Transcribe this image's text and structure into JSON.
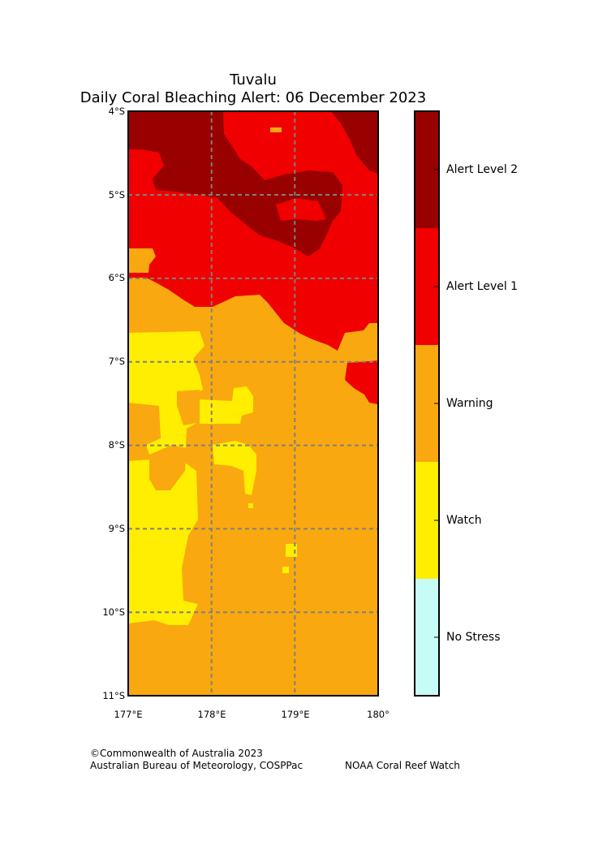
{
  "title": "Tuvalu",
  "subtitle": "Daily Coral Bleaching Alert: 06 December 2023",
  "axes": {
    "lat_labels": [
      "4°S",
      "5°S",
      "6°S",
      "7°S",
      "8°S",
      "9°S",
      "10°S",
      "11°S"
    ],
    "lon_labels": [
      "177°E",
      "178°E",
      "179°E",
      "180°"
    ]
  },
  "legend": {
    "levels": [
      {
        "label": "Alert Level 2",
        "color": "#990000"
      },
      {
        "label": "Alert Level 1",
        "color": "#f00000"
      },
      {
        "label": "Warning",
        "color": "#f9a90f"
      },
      {
        "label": "Watch",
        "color": "#ffee00"
      },
      {
        "label": "No Stress",
        "color": "#c6fcf5"
      }
    ]
  },
  "colors": {
    "alert2": "#990000",
    "alert1": "#f00000",
    "warning": "#f9a90f",
    "watch": "#ffee00",
    "no_stress": "#c6fcf5",
    "grid": "#7f7f7f"
  },
  "footer": {
    "copyright": "©Commonwealth of Australia 2023",
    "credit_left": "Australian Bureau of Meteorology, COSPPac",
    "credit_right": "NOAA Coral Reef Watch"
  }
}
